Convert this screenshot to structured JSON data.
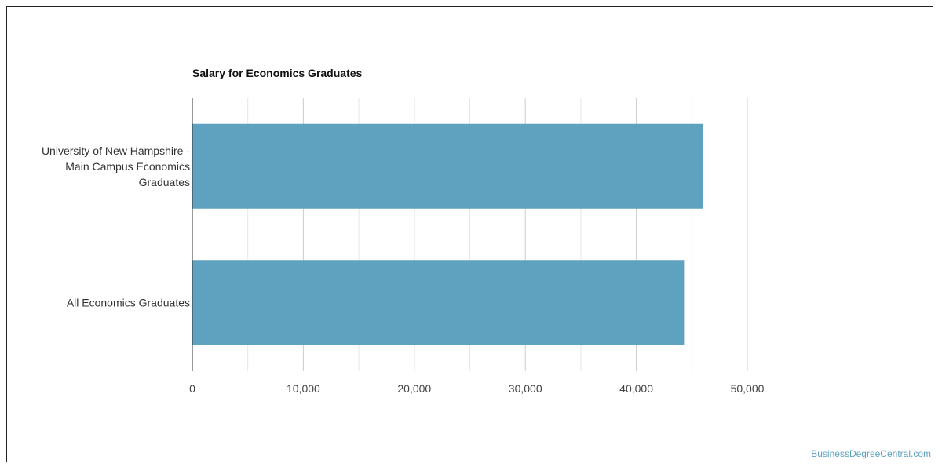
{
  "chart_data": {
    "type": "bar",
    "orientation": "horizontal",
    "title": "Salary for Economics Graduates",
    "xlabel": "",
    "ylabel": "",
    "categories": [
      [
        "University of New Hampshire -",
        "Main Campus Economics",
        "Graduates"
      ],
      [
        "All Economics Graduates"
      ]
    ],
    "values": [
      46000,
      44300
    ],
    "xlim": [
      0,
      50000
    ],
    "ticks": [
      0,
      10000,
      20000,
      30000,
      40000,
      50000
    ],
    "tick_labels": [
      "0",
      "10,000",
      "20,000",
      "30,000",
      "40,000",
      "50,000"
    ],
    "grid": true,
    "legend": "none",
    "bar_color": "#5ea2bf"
  },
  "watermark": "BusinessDegreeCentral.com"
}
